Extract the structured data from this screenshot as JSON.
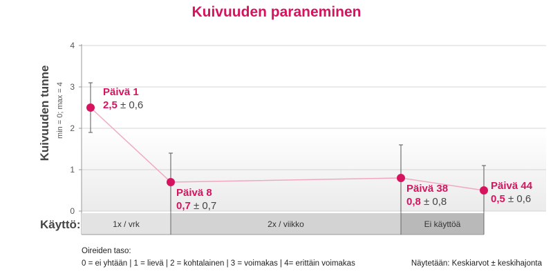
{
  "chart_data": {
    "type": "line",
    "title": "Kuivuuden paraneminen",
    "ylabel": "Kuivuuden tunne",
    "ylabel_sub": "min = 0; max = 4",
    "ylim": [
      0,
      4
    ],
    "yticks": [
      "0",
      "1",
      "2",
      "3",
      "4"
    ],
    "x": [
      1,
      8,
      38,
      44
    ],
    "series": [
      {
        "values": [
          2.5,
          0.7,
          0.8,
          0.5
        ],
        "errors": [
          0.6,
          0.7,
          0.8,
          0.6
        ]
      }
    ],
    "annotations": [
      {
        "day": "Päivä 1",
        "mean": "2,5",
        "sd": "± 0,6"
      },
      {
        "day": "Päivä 8",
        "mean": "0,7",
        "sd": "± 0,7"
      },
      {
        "day": "Päivä 38",
        "mean": "0,8",
        "sd": "± 0,8"
      },
      {
        "day": "Päivä 44",
        "mean": "0,5",
        "sd": "± 0,6"
      }
    ],
    "usage": {
      "label": "Käyttö:",
      "segments": [
        {
          "label": "1x / vrk",
          "from": 1,
          "to": 8,
          "color": "#e3e3e3"
        },
        {
          "label": "2x / viikko",
          "from": 8,
          "to": 38,
          "color": "#d3d3d3"
        },
        {
          "label": "Ei käyttöä",
          "from": 38,
          "to": 44,
          "color": "#b9b9b9"
        }
      ]
    },
    "grid": true,
    "colors": {
      "accent": "#d6135e",
      "line": "#f0a8c0"
    }
  },
  "footer": {
    "legend_title": "Oireiden taso:",
    "legend_scale": "0 = ei yhtään | 1 = lievä | 2 = kohtalainen | 3 = voimakas | 4= erittäin voimakas",
    "note": "Näytetään: Keskiarvot ± keskihajonta"
  }
}
